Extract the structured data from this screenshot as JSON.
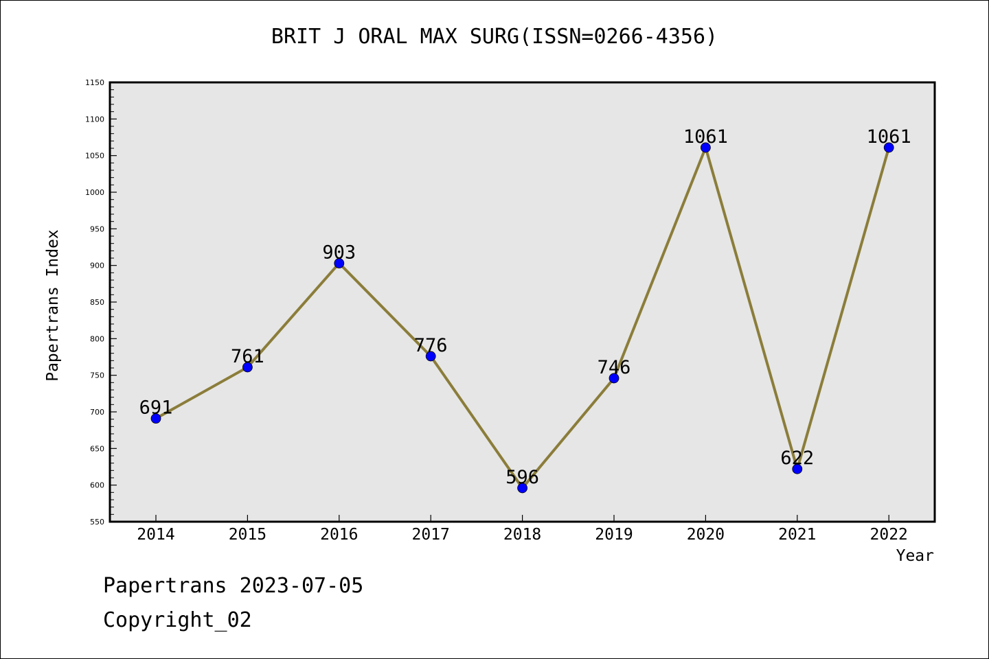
{
  "chart_data": {
    "type": "line",
    "title": "BRIT J ORAL MAX SURG(ISSN=0266-4356)",
    "xlabel": "Year",
    "ylabel": "Papertrans Index",
    "categories": [
      "2014",
      "2015",
      "2016",
      "2017",
      "2018",
      "2019",
      "2020",
      "2021",
      "2022"
    ],
    "values": [
      691,
      761,
      903,
      776,
      596,
      746,
      1061,
      622,
      1061
    ],
    "data_labels": [
      "691",
      "761",
      "903",
      "776",
      "596",
      "746",
      "1061",
      "622",
      "1061"
    ],
    "ylim": [
      550,
      1150
    ],
    "y_ticks": [
      "550",
      "600",
      "650",
      "700",
      "750",
      "800",
      "850",
      "900",
      "950",
      "1000",
      "1050",
      "1100",
      "1150"
    ],
    "grid": false,
    "line_color": "#8b7d3a",
    "marker_color": "#0000ff",
    "plot_background": "#e6e6e6"
  },
  "footer": {
    "date_text": "Papertrans 2023-07-05",
    "copyright": "Copyright_02"
  }
}
